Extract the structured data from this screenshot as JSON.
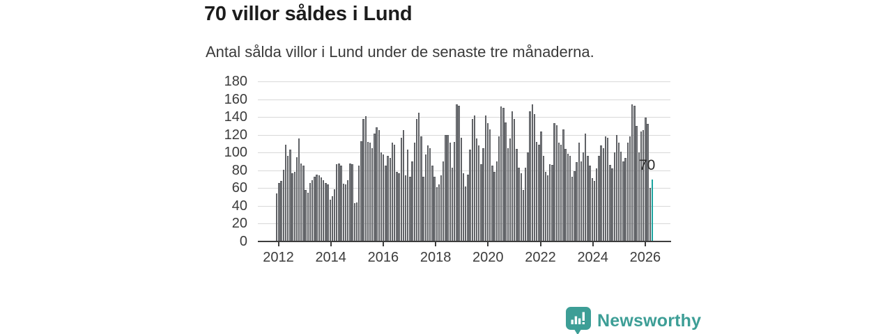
{
  "header": {
    "title": "70 villor såldes i Lund",
    "subtitle": "Antal sålda villor i Lund under de senaste tre månaderna."
  },
  "chart_data": {
    "type": "bar",
    "title": "70 villor såldes i Lund",
    "subtitle": "Antal sålda villor i Lund under de senaste tre månaderna.",
    "xlabel": "",
    "ylabel": "",
    "period": "monthly, rolling 3-month totals, 2012 through early 2026",
    "ylim": [
      0,
      180
    ],
    "grid": true,
    "legend": false,
    "y_ticks": [
      0,
      20,
      40,
      60,
      80,
      100,
      120,
      140,
      160,
      180
    ],
    "x_tick_labels": [
      "2012",
      "2014",
      "2016",
      "2018",
      "2020",
      "2022",
      "2024",
      "2026"
    ],
    "values": [
      54,
      66,
      68,
      81,
      109,
      96,
      103,
      77,
      78,
      95,
      116,
      88,
      85,
      58,
      55,
      66,
      69,
      73,
      75,
      74,
      72,
      69,
      66,
      64,
      47,
      51,
      59,
      87,
      88,
      85,
      65,
      64,
      69,
      88,
      87,
      43,
      44,
      85,
      113,
      138,
      141,
      112,
      111,
      105,
      121,
      128,
      125,
      100,
      98,
      85,
      96,
      94,
      111,
      109,
      78,
      77,
      117,
      125,
      74,
      103,
      73,
      90,
      111,
      138,
      145,
      118,
      73,
      98,
      108,
      105,
      85,
      73,
      61,
      64,
      74,
      90,
      120,
      120,
      111,
      83,
      112,
      154,
      153,
      117,
      77,
      62,
      75,
      103,
      138,
      142,
      116,
      108,
      87,
      105,
      142,
      133,
      126,
      85,
      78,
      90,
      118,
      152,
      150,
      134,
      105,
      116,
      146,
      138,
      104,
      83,
      77,
      58,
      83,
      100,
      146,
      154,
      143,
      112,
      109,
      124,
      96,
      78,
      74,
      87,
      86,
      133,
      131,
      111,
      109,
      126,
      104,
      99,
      96,
      73,
      79,
      89,
      111,
      90,
      100,
      121,
      96,
      85,
      71,
      68,
      82,
      96,
      108,
      105,
      118,
      117,
      86,
      82,
      100,
      120,
      111,
      101,
      90,
      94,
      111,
      118,
      154,
      153,
      130,
      100,
      124,
      125,
      139,
      132,
      60,
      70
    ],
    "annotation": "70",
    "highlight": {
      "index": 169,
      "value": 70,
      "color": "#1ba49f"
    },
    "bar_color": "#7c7e82"
  },
  "footer": {
    "brand": "Newsworthy",
    "logo_icon": "newsworthy-speech-bubble-chart-icon",
    "brand_color": "#3d9e96"
  },
  "colors": {
    "title": "#1c1c1c",
    "subtitle": "#3a3a3a",
    "axis_text": "#3b3b3b",
    "gridline": "#d8d8d8",
    "axis_line": "#3d3d3d",
    "bar": "#7c7e82",
    "bar_stroke": "#55575b",
    "highlight": "#1ba49f",
    "brand": "#3d9e96"
  }
}
